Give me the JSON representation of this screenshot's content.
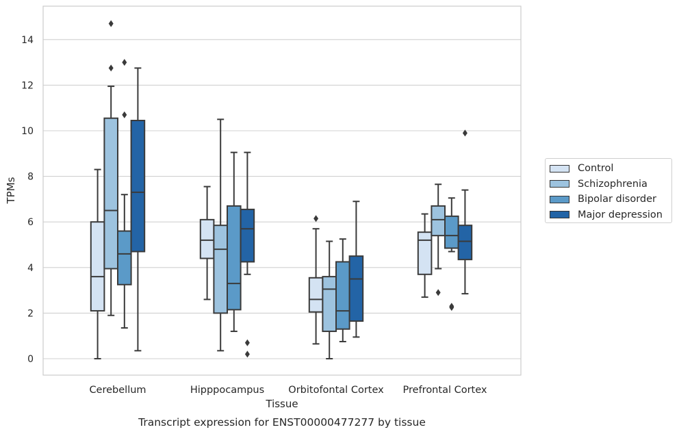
{
  "chart_data": {
    "type": "box",
    "title": "Transcript expression for ENST00000477277 by tissue",
    "xlabel": "Tissue",
    "ylabel": "TPMs",
    "ylim": [
      -0.7,
      15.5
    ],
    "yticks": [
      0,
      2,
      4,
      6,
      8,
      10,
      12,
      14
    ],
    "grid": "horizontal",
    "legend_position": "right",
    "categories": [
      "Cerebellum",
      "Hipppocampus",
      "Orbitofontal Cortex",
      "Prefrontal Cortex"
    ],
    "series": [
      {
        "name": "Control",
        "color": "#d4e3f3",
        "boxes": [
          {
            "whislo": 0.0,
            "q1": 2.1,
            "med": 3.6,
            "q3": 6.0,
            "whishi": 8.3,
            "fliers": []
          },
          {
            "whislo": 2.6,
            "q1": 4.4,
            "med": 5.2,
            "q3": 6.1,
            "whishi": 7.55,
            "fliers": []
          },
          {
            "whislo": 0.65,
            "q1": 2.05,
            "med": 2.6,
            "q3": 3.55,
            "whishi": 5.7,
            "fliers": [
              6.15
            ]
          },
          {
            "whislo": 2.7,
            "q1": 3.7,
            "med": 5.2,
            "q3": 5.55,
            "whishi": 6.35,
            "fliers": []
          }
        ]
      },
      {
        "name": "Schizophrenia",
        "color": "#9dc3df",
        "boxes": [
          {
            "whislo": 1.9,
            "q1": 3.95,
            "med": 6.5,
            "q3": 10.55,
            "whishi": 11.95,
            "fliers": [
              12.75,
              14.7
            ]
          },
          {
            "whislo": 0.35,
            "q1": 2.0,
            "med": 4.8,
            "q3": 5.85,
            "whishi": 10.5,
            "fliers": []
          },
          {
            "whislo": 0.0,
            "q1": 1.2,
            "med": 3.05,
            "q3": 3.6,
            "whishi": 5.15,
            "fliers": []
          },
          {
            "whislo": 3.95,
            "q1": 5.4,
            "med": 6.1,
            "q3": 6.7,
            "whishi": 7.65,
            "fliers": [
              2.9
            ]
          }
        ]
      },
      {
        "name": "Bipolar disorder",
        "color": "#5b9ac8",
        "boxes": [
          {
            "whislo": 1.35,
            "q1": 3.25,
            "med": 4.6,
            "q3": 5.6,
            "whishi": 7.2,
            "fliers": [
              10.7,
              13.0
            ]
          },
          {
            "whislo": 1.2,
            "q1": 2.15,
            "med": 3.3,
            "q3": 6.7,
            "whishi": 9.05,
            "fliers": []
          },
          {
            "whislo": 0.75,
            "q1": 1.3,
            "med": 2.1,
            "q3": 4.25,
            "whishi": 5.25,
            "fliers": []
          },
          {
            "whislo": 4.7,
            "q1": 4.85,
            "med": 5.4,
            "q3": 6.25,
            "whishi": 7.05,
            "fliers": [
              2.25,
              2.3
            ]
          }
        ]
      },
      {
        "name": "Major depression",
        "color": "#2364a6",
        "boxes": [
          {
            "whislo": 0.35,
            "q1": 4.7,
            "med": 7.3,
            "q3": 10.45,
            "whishi": 12.75,
            "fliers": []
          },
          {
            "whislo": 3.7,
            "q1": 4.25,
            "med": 5.7,
            "q3": 6.55,
            "whishi": 9.05,
            "fliers": [
              0.7,
              0.2
            ]
          },
          {
            "whislo": 0.95,
            "q1": 1.65,
            "med": 3.5,
            "q3": 4.5,
            "whishi": 6.9,
            "fliers": []
          },
          {
            "whislo": 2.85,
            "q1": 4.35,
            "med": 5.15,
            "q3": 5.85,
            "whishi": 7.4,
            "fliers": [
              9.9
            ]
          }
        ]
      }
    ]
  }
}
